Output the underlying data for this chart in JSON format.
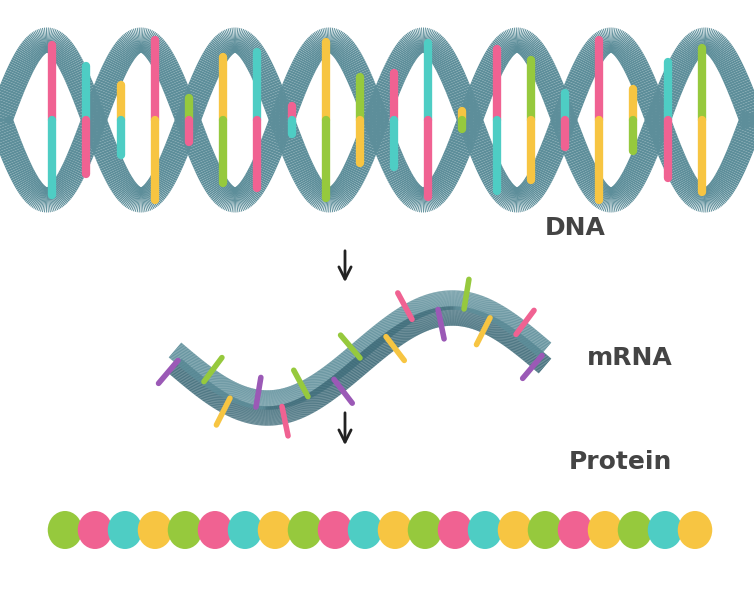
{
  "bg_color": "#ffffff",
  "dna_strand_color": "#5d8e9a",
  "dna_strand_shadow": "#3d6a78",
  "dna_bar_colors_top": [
    "#96c93d",
    "#f06292",
    "#4ecdc4",
    "#f7c542",
    "#f06292",
    "#96c93d",
    "#f7c542",
    "#4ecdc4",
    "#f06292",
    "#f7c542",
    "#96c93d",
    "#f06292",
    "#4ecdc4",
    "#f7c542",
    "#f06292",
    "#96c93d",
    "#4ecdc4",
    "#f06292",
    "#f7c542",
    "#4ecdc4"
  ],
  "dna_bar_colors_bot": [
    "#f7c542",
    "#4ecdc4",
    "#f06292",
    "#4ecdc4",
    "#f7c542",
    "#f06292",
    "#96c93d",
    "#f06292",
    "#4ecdc4",
    "#96c93d",
    "#f7c542",
    "#4ecdc4",
    "#f06292",
    "#96c93d",
    "#4ecdc4",
    "#f7c542",
    "#f06292",
    "#f7c542",
    "#96c93d",
    "#f06292"
  ],
  "mrna_strand_color1": "#5d8e9a",
  "mrna_strand_color2": "#3d6a78",
  "mrna_bar_colors": [
    "#9b59b6",
    "#96c93d",
    "#f7c542",
    "#9b59b6",
    "#f06292",
    "#96c93d",
    "#9b59b6",
    "#96c93d",
    "#f7c542",
    "#f06292",
    "#9b59b6",
    "#96c93d",
    "#f7c542",
    "#f06292",
    "#9b59b6"
  ],
  "protein_colors": [
    "#96c93d",
    "#f06292",
    "#4ecdc4",
    "#f7c542",
    "#96c93d",
    "#f06292",
    "#4ecdc4",
    "#f7c542",
    "#96c93d",
    "#f06292",
    "#4ecdc4",
    "#f7c542",
    "#96c93d",
    "#f06292",
    "#4ecdc4",
    "#f7c542",
    "#96c93d",
    "#f06292",
    "#f7c542",
    "#96c93d",
    "#4ecdc4",
    "#f7c542"
  ],
  "label_dna": "DNA",
  "label_mrna": "mRNA",
  "label_protein": "Protein",
  "label_color": "#444444",
  "label_fontsize": 18,
  "arrow_color": "#222222",
  "figsize": [
    7.54,
    5.91
  ],
  "dpi": 100
}
